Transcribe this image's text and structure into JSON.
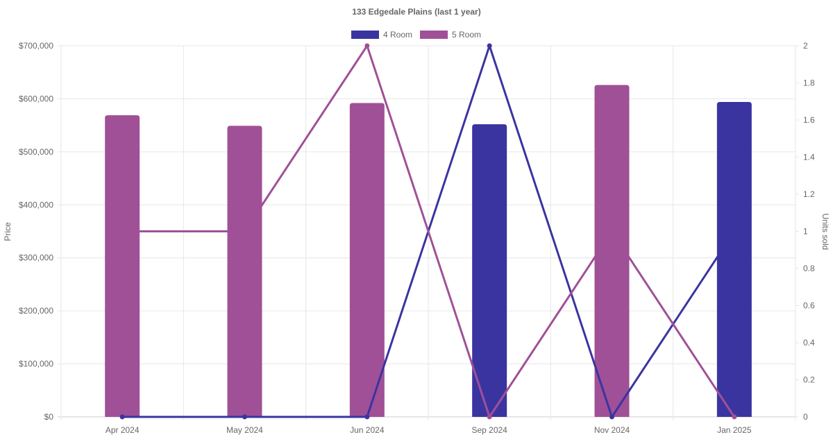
{
  "chart_data": {
    "type": "bar",
    "title": "133 Edgedale  Plains (last 1 year)",
    "categories": [
      "Apr 2024",
      "May 2024",
      "Jun 2024",
      "Sep 2024",
      "Nov 2024",
      "Jan 2025"
    ],
    "ylabel": "Price",
    "y2label": "Units sold",
    "ylim": [
      0,
      700000
    ],
    "y2lim": [
      0,
      2
    ],
    "y_ticks": [
      "$0",
      "$100,000",
      "$200,000",
      "$300,000",
      "$400,000",
      "$500,000",
      "$600,000",
      "$700,000"
    ],
    "y2_ticks": [
      "0",
      "0.2",
      "0.4",
      "0.6",
      "0.8",
      "1",
      "1.2",
      "1.4",
      "1.6",
      "1.8",
      "2"
    ],
    "grid": true,
    "legend_position": "top",
    "series": [
      {
        "name": "4 Room",
        "color": "#3a34a0",
        "price": [
          null,
          null,
          null,
          552000,
          null,
          594000
        ],
        "units": [
          0,
          0,
          0,
          2,
          0,
          1
        ]
      },
      {
        "name": "5 Room",
        "color": "#a05096",
        "price": [
          569000,
          549000,
          592000,
          null,
          626000,
          null
        ],
        "units": [
          1,
          1,
          2,
          0,
          1,
          0
        ]
      }
    ]
  }
}
